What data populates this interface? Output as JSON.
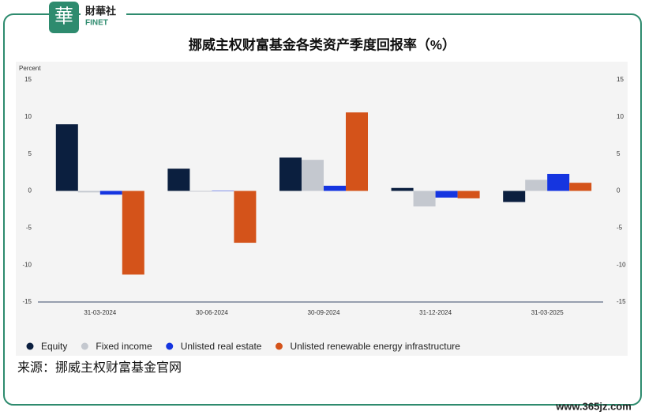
{
  "brand": {
    "name": "財華社",
    "sub": "FINET"
  },
  "watermark": "www.365jz.com",
  "source": "来源：挪威主权财富基金官网",
  "chart_data": {
    "type": "bar",
    "title": "挪威主权财富基金各类资产季度回报率（%）",
    "y_label": "Percent",
    "categories": [
      "31-03-2024",
      "30-06-2024",
      "30-09-2024",
      "31-12-2024",
      "31-03-2025"
    ],
    "series": [
      {
        "name": "Equity",
        "color": "#0b1f3f",
        "values": [
          9.0,
          3.0,
          4.5,
          0.4,
          -1.5
        ]
      },
      {
        "name": "Fixed income",
        "color": "#c4c8cf",
        "values": [
          -0.2,
          -0.1,
          4.2,
          -2.1,
          1.5
        ]
      },
      {
        "name": "Unlisted real estate",
        "color": "#1535e0",
        "values": [
          -0.5,
          0,
          0.7,
          -0.9,
          2.3
        ]
      },
      {
        "name": "Unlisted renewable energy infrastructure",
        "color": "#d4531a",
        "values": [
          -11.3,
          -7.0,
          10.6,
          -1.0,
          1.1
        ]
      }
    ],
    "ylim": [
      -15,
      15
    ],
    "yticks": [
      -15,
      -10,
      -5,
      0,
      5,
      10,
      15
    ],
    "grid": false
  }
}
